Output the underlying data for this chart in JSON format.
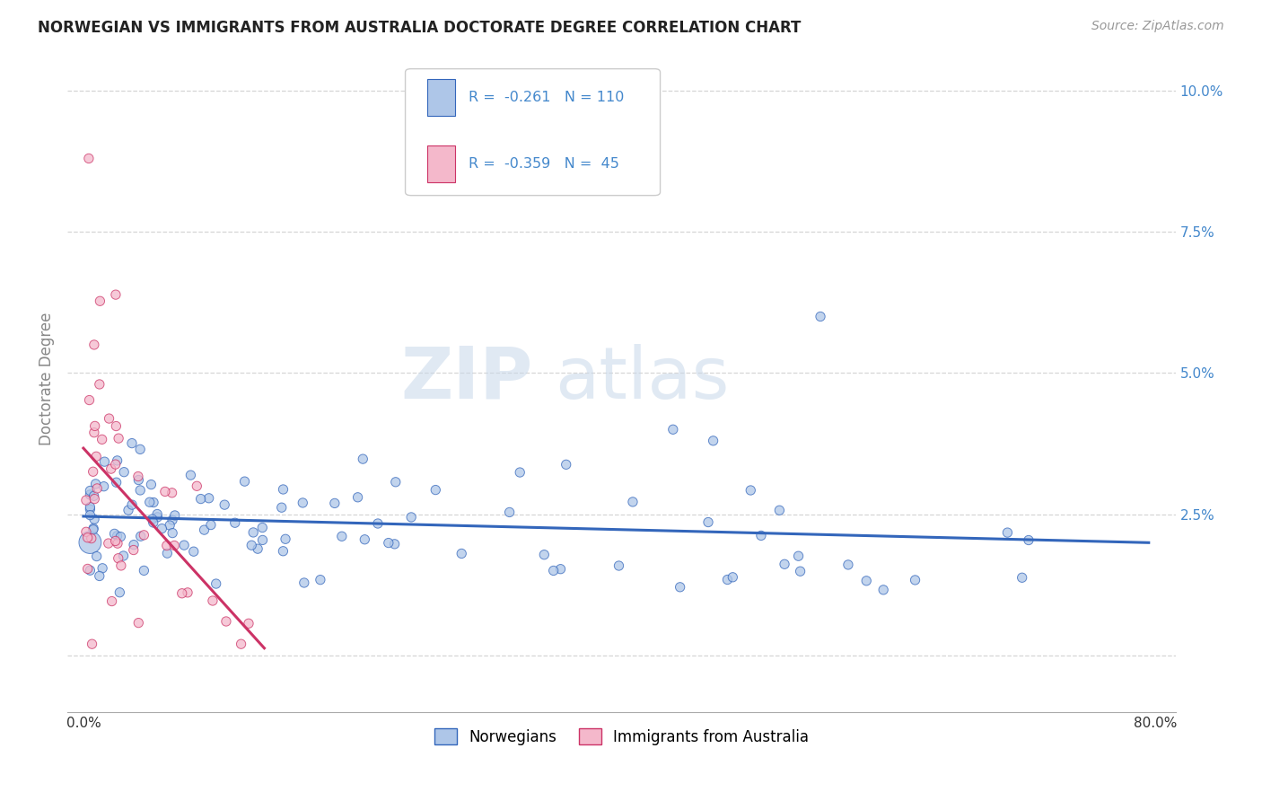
{
  "title": "NORWEGIAN VS IMMIGRANTS FROM AUSTRALIA DOCTORATE DEGREE CORRELATION CHART",
  "source": "Source: ZipAtlas.com",
  "ylabel": "Doctorate Degree",
  "watermark_zip": "ZIP",
  "watermark_atlas": "atlas",
  "legend_r1": "-0.261",
  "legend_n1": "110",
  "legend_r2": "-0.359",
  "legend_n2": "45",
  "legend_label1": "Norwegians",
  "legend_label2": "Immigrants from Australia",
  "color_blue": "#aec6e8",
  "color_pink": "#f4b8cb",
  "line_blue": "#3366bb",
  "line_pink": "#cc3366",
  "background": "#ffffff",
  "grid_color": "#bbbbbb",
  "title_color": "#222222",
  "source_color": "#999999",
  "tick_color": "#4488cc",
  "ylabel_color": "#888888"
}
